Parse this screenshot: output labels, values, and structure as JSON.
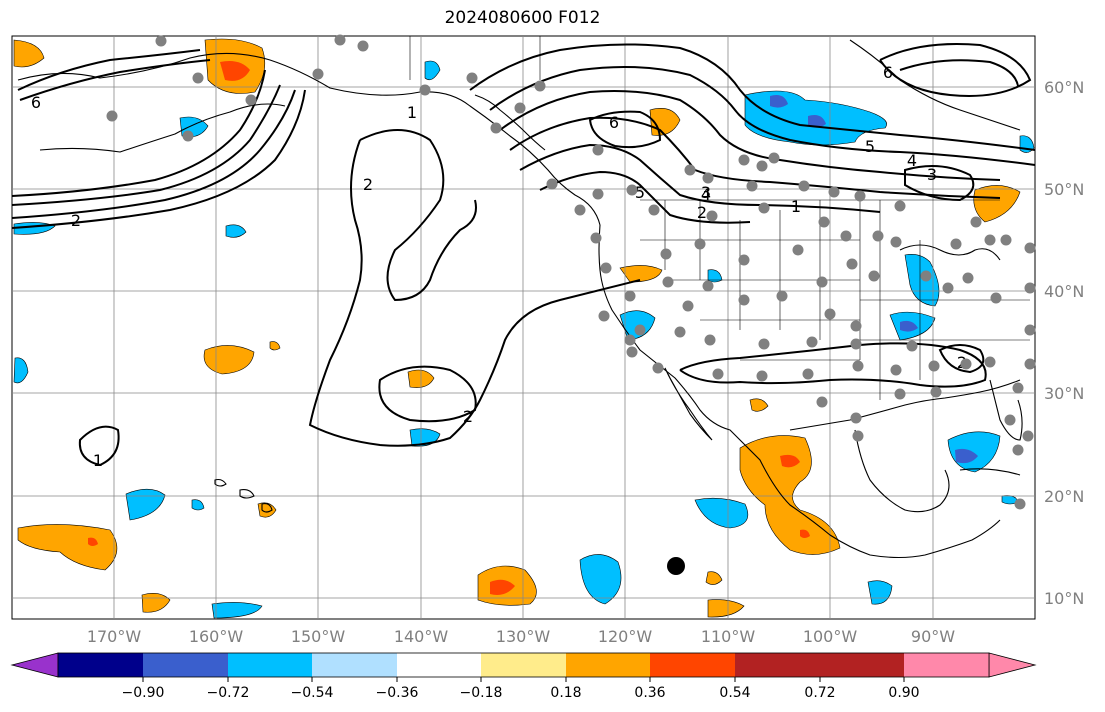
{
  "title": "2024080600 F012",
  "map": {
    "lat_labels": [
      "60°N",
      "50°N",
      "40°N",
      "30°N",
      "20°N",
      "10°N"
    ],
    "lon_labels": [
      "170°W",
      "160°W",
      "150°W",
      "140°W",
      "130°W",
      "120°W",
      "110°W",
      "100°W",
      "90°W"
    ],
    "contour_labels": [
      "6",
      "2",
      "1",
      "2",
      "2",
      "1",
      "6",
      "5",
      "4",
      "3",
      "1",
      "2",
      "5",
      "6",
      "4",
      "3",
      "2"
    ]
  },
  "colorbar": {
    "ticks": [
      "−0.90",
      "−0.72",
      "−0.54",
      "−0.36",
      "−0.18",
      "0.18",
      "0.36",
      "0.54",
      "0.72",
      "0.90"
    ],
    "colors": [
      "#9932cc",
      "#00008b",
      "#3a5fcd",
      "#00bfff",
      "#b0e0ff",
      "#ffffff",
      "#ffec8b",
      "#ffa500",
      "#ff4500",
      "#b22222",
      "#ff88aa"
    ]
  },
  "colors": {
    "orange": "#ffa500",
    "red": "#ff4500",
    "cyan": "#00bfff",
    "blue": "#3a5fcd",
    "station": "#808080"
  }
}
